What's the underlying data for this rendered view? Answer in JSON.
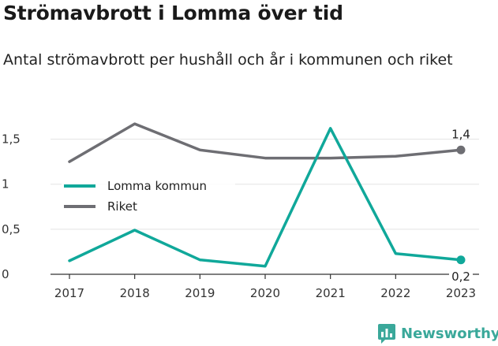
{
  "title": "Strömavbrott i Lomma över tid",
  "subtitle": "Antal strömavbrott per hushåll och år i kommunen och riket",
  "brand": {
    "name": "Newsworthy",
    "icon": "newsworthy-logo-icon",
    "color": "#3aa89a"
  },
  "colors": {
    "lomma": "#10a89a",
    "riket": "#6e6e73",
    "grid": "#e3e3e3",
    "axis": "#333333"
  },
  "chart_data": {
    "type": "line",
    "x": [
      "2017",
      "2018",
      "2019",
      "2020",
      "2021",
      "2022",
      "2023"
    ],
    "ylim": [
      0,
      1.75
    ],
    "yticks": [
      {
        "value": 0,
        "label": "0"
      },
      {
        "value": 0.5,
        "label": "0,5"
      },
      {
        "value": 1,
        "label": "1"
      },
      {
        "value": 1.5,
        "label": "1,5"
      }
    ],
    "grid": true,
    "legend_position": "left",
    "series": [
      {
        "name": "Lomma kommun",
        "color": "#10a89a",
        "values": [
          0.15,
          0.49,
          0.16,
          0.09,
          1.62,
          0.23,
          0.16
        ],
        "end_label": "0,2"
      },
      {
        "name": "Riket",
        "color": "#6e6e73",
        "values": [
          1.25,
          1.67,
          1.38,
          1.29,
          1.29,
          1.31,
          1.38
        ],
        "end_label": "1,4"
      }
    ]
  }
}
